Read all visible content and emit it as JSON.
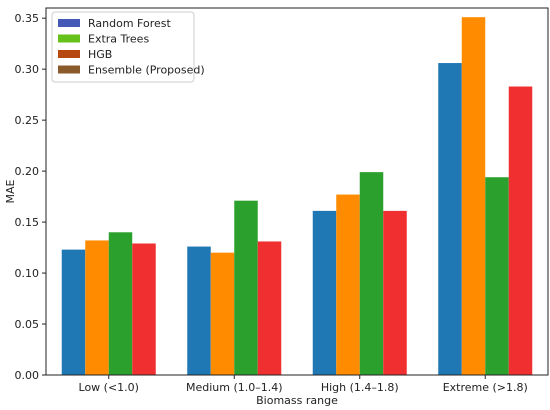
{
  "chart_data": {
    "type": "bar",
    "title": "",
    "xlabel": "Biomass range",
    "ylabel": "MAE",
    "categories": [
      "Low (<1.0)",
      "Medium (1.0–1.4)",
      "High (1.4–1.8)",
      "Extreme (>1.8)"
    ],
    "ylim": [
      0,
      0.36
    ],
    "yticks": [
      0.0,
      0.05,
      0.1,
      0.15,
      0.2,
      0.25,
      0.3,
      0.35
    ],
    "ytick_labels": [
      "0.00",
      "0.05",
      "0.10",
      "0.15",
      "0.20",
      "0.25",
      "0.30",
      "0.35"
    ],
    "grid": false,
    "legend_position": "top-left",
    "series": [
      {
        "name": "Random Forest",
        "legend_color": "#4458b8",
        "bar_color": "#1f77b4",
        "values": [
          0.123,
          0.126,
          0.161,
          0.306
        ]
      },
      {
        "name": "Extra Trees",
        "legend_color": "#66c21a",
        "bar_color": "#ff8c00",
        "values": [
          0.132,
          0.12,
          0.177,
          0.351
        ]
      },
      {
        "name": "HGB",
        "legend_color": "#b5470f",
        "bar_color": "#2ca02c",
        "values": [
          0.14,
          0.171,
          0.199,
          0.194
        ]
      },
      {
        "name": "Ensemble (Proposed)",
        "legend_color": "#8b5a2b",
        "bar_color": "#f03030",
        "values": [
          0.129,
          0.131,
          0.161,
          0.283
        ]
      }
    ]
  }
}
